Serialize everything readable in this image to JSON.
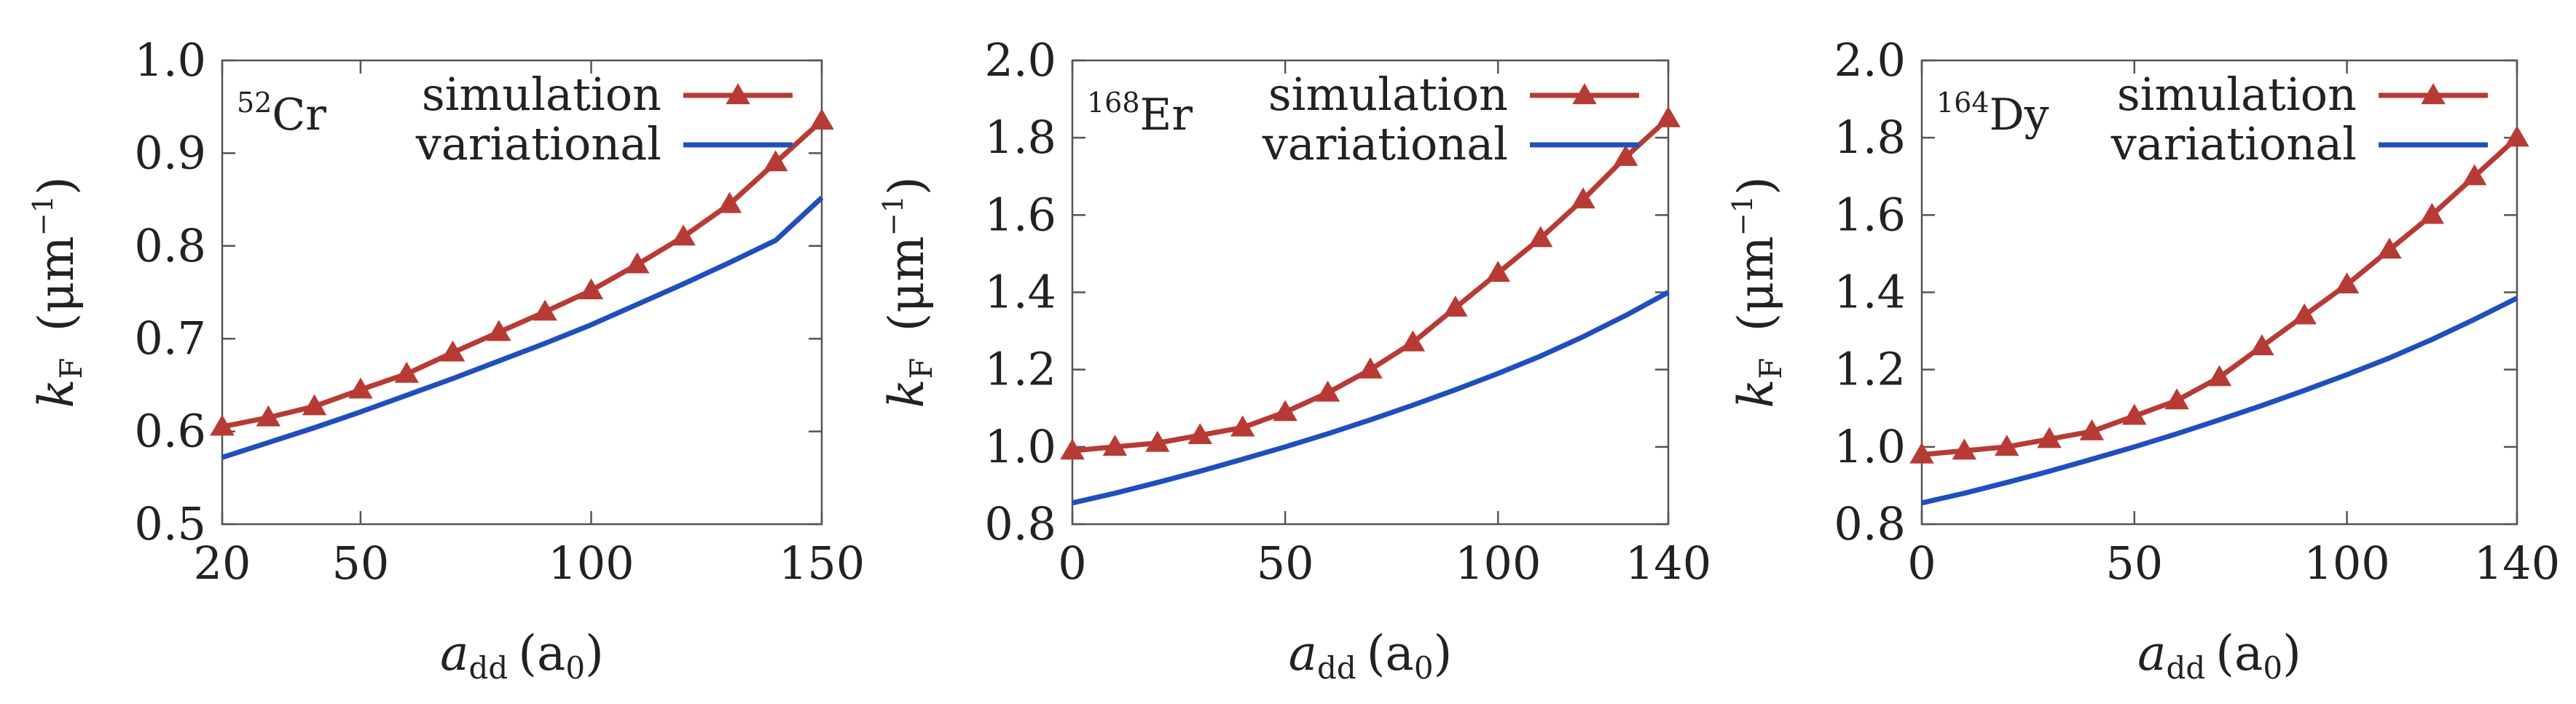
{
  "chart_data": [
    {
      "type": "line",
      "element_mass": "52",
      "element_symbol": "Cr",
      "xlabel_main": "a",
      "xlabel_sub": "dd",
      "xlabel_unit": "(a",
      "xlabel_unit_sub": "0",
      "xlabel_close": ")",
      "ylabel_main": "k",
      "ylabel_sub": "F",
      "ylabel_unit_open": "(μm",
      "ylabel_unit_sup": "−1",
      "ylabel_unit_close": ")",
      "xlim": [
        20,
        150
      ],
      "ylim": [
        0.5,
        1.0
      ],
      "xticks": [
        20,
        50,
        100,
        150
      ],
      "xtick_labels": [
        "20",
        "50",
        "100",
        "150"
      ],
      "yticks": [
        0.5,
        0.6,
        0.7,
        0.8,
        0.9,
        1.0
      ],
      "ytick_labels": [
        "0.5",
        "0.6",
        "0.7",
        "0.8",
        "0.9",
        "1.0"
      ],
      "series": [
        {
          "name": "simulation",
          "color": "#b83a34",
          "marker": "triangle",
          "x": [
            20,
            30,
            40,
            50,
            60,
            70,
            80,
            90,
            100,
            110,
            120,
            130,
            140,
            150
          ],
          "y": [
            0.605,
            0.615,
            0.627,
            0.645,
            0.662,
            0.685,
            0.707,
            0.729,
            0.752,
            0.78,
            0.81,
            0.845,
            0.89,
            0.935
          ]
        },
        {
          "name": "variational",
          "color": "#1f4fbf",
          "marker": "none",
          "x": [
            20,
            30,
            40,
            50,
            60,
            70,
            80,
            90,
            100,
            110,
            120,
            130,
            140,
            150
          ],
          "y": [
            0.572,
            0.588,
            0.604,
            0.621,
            0.639,
            0.657,
            0.676,
            0.695,
            0.715,
            0.737,
            0.759,
            0.782,
            0.806,
            0.852
          ]
        }
      ]
    },
    {
      "type": "line",
      "element_mass": "168",
      "element_symbol": "Er",
      "xlabel_main": "a",
      "xlabel_sub": "dd",
      "xlabel_unit": "(a",
      "xlabel_unit_sub": "0",
      "xlabel_close": ")",
      "ylabel_main": "k",
      "ylabel_sub": "F",
      "ylabel_unit_open": "(μm",
      "ylabel_unit_sup": "−1",
      "ylabel_unit_close": ")",
      "xlim": [
        0,
        140
      ],
      "ylim": [
        0.8,
        2.0
      ],
      "xticks": [
        0,
        50,
        100,
        140
      ],
      "xtick_labels": [
        "0",
        "50",
        "100",
        "140"
      ],
      "yticks": [
        0.8,
        1.0,
        1.2,
        1.4,
        1.6,
        1.8,
        2.0
      ],
      "ytick_labels": [
        "0.8",
        "1.0",
        "1.2",
        "1.4",
        "1.6",
        "1.8",
        "2.0"
      ],
      "series": [
        {
          "name": "simulation",
          "color": "#b83a34",
          "marker": "triangle",
          "x": [
            0,
            10,
            20,
            30,
            40,
            50,
            60,
            70,
            80,
            90,
            100,
            110,
            120,
            130,
            140
          ],
          "y": [
            0.99,
            1.0,
            1.01,
            1.03,
            1.05,
            1.09,
            1.14,
            1.2,
            1.27,
            1.36,
            1.45,
            1.54,
            1.64,
            1.75,
            1.85
          ]
        },
        {
          "name": "variational",
          "color": "#1f4fbf",
          "marker": "none",
          "x": [
            0,
            10,
            20,
            30,
            40,
            50,
            60,
            70,
            80,
            90,
            100,
            110,
            120,
            130,
            140
          ],
          "y": [
            0.855,
            0.88,
            0.908,
            0.937,
            0.968,
            1.0,
            1.034,
            1.07,
            1.108,
            1.148,
            1.19,
            1.235,
            1.285,
            1.34,
            1.4
          ]
        }
      ]
    },
    {
      "type": "line",
      "element_mass": "164",
      "element_symbol": "Dy",
      "xlabel_main": "a",
      "xlabel_sub": "dd",
      "xlabel_unit": "(a",
      "xlabel_unit_sub": "0",
      "xlabel_close": ")",
      "ylabel_main": "k",
      "ylabel_sub": "F",
      "ylabel_unit_open": "(μm",
      "ylabel_unit_sup": "−1",
      "ylabel_unit_close": ")",
      "xlim": [
        0,
        140
      ],
      "ylim": [
        0.8,
        2.0
      ],
      "xticks": [
        0,
        50,
        100,
        140
      ],
      "xtick_labels": [
        "0",
        "50",
        "100",
        "140"
      ],
      "yticks": [
        0.8,
        1.0,
        1.2,
        1.4,
        1.6,
        1.8,
        2.0
      ],
      "ytick_labels": [
        "0.8",
        "1.0",
        "1.2",
        "1.4",
        "1.6",
        "1.8",
        "2.0"
      ],
      "series": [
        {
          "name": "simulation",
          "color": "#b83a34",
          "marker": "triangle",
          "x": [
            0,
            10,
            20,
            30,
            40,
            50,
            60,
            70,
            80,
            90,
            100,
            110,
            120,
            130,
            140
          ],
          "y": [
            0.98,
            0.99,
            1.0,
            1.02,
            1.04,
            1.08,
            1.12,
            1.18,
            1.26,
            1.34,
            1.42,
            1.51,
            1.6,
            1.7,
            1.8
          ]
        },
        {
          "name": "variational",
          "color": "#1f4fbf",
          "marker": "none",
          "x": [
            0,
            10,
            20,
            30,
            40,
            50,
            60,
            70,
            80,
            90,
            100,
            110,
            120,
            130,
            140
          ],
          "y": [
            0.855,
            0.88,
            0.908,
            0.937,
            0.968,
            1.0,
            1.034,
            1.07,
            1.107,
            1.146,
            1.187,
            1.23,
            1.278,
            1.33,
            1.385
          ]
        }
      ]
    }
  ]
}
